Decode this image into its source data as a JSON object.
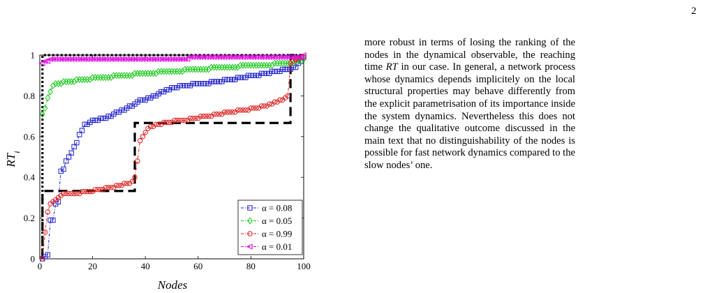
{
  "page": {
    "number": "2"
  },
  "text": {
    "paragraph_parts": [
      "more robust in terms of losing the ranking of the nodes in the dynamical observable, the reaching time ",
      "RT",
      " in our case. In general, a network process whose dynamics depends implicitely on the local structural properties may behave differently from the explicit parametrisation of its importance inside the system dynamics. Nevertheless this does not change the qualitative outcome discussed in the main text that no distinguishability of the nodes is possible for fast network dynamics compared to the slow nodes’ one."
    ]
  },
  "chart_data": {
    "type": "line",
    "xlabel": "Nodes",
    "ylabel": "RT_i",
    "xlim": [
      0,
      100
    ],
    "ylim": [
      0,
      1
    ],
    "xticks": [
      "0",
      "20",
      "40",
      "60",
      "80",
      "100"
    ],
    "yticks": [
      "0",
      "0.2",
      "0.4",
      "0.6",
      "0.8",
      "1"
    ],
    "legend_position": "bottom-right",
    "grid": false,
    "series": [
      {
        "name": "α = 0.08",
        "color": "#1f1fd0",
        "marker": "square",
        "values": [
          0.0,
          0.01,
          0.02,
          0.19,
          0.19,
          0.27,
          0.28,
          0.43,
          0.44,
          0.48,
          0.5,
          0.52,
          0.55,
          0.57,
          0.61,
          0.63,
          0.66,
          0.66,
          0.67,
          0.68,
          0.68,
          0.68,
          0.69,
          0.69,
          0.69,
          0.7,
          0.7,
          0.71,
          0.72,
          0.72,
          0.73,
          0.73,
          0.74,
          0.75,
          0.75,
          0.76,
          0.77,
          0.78,
          0.78,
          0.78,
          0.79,
          0.79,
          0.8,
          0.8,
          0.81,
          0.82,
          0.82,
          0.83,
          0.83,
          0.84,
          0.84,
          0.84,
          0.85,
          0.85,
          0.85,
          0.85,
          0.85,
          0.86,
          0.86,
          0.86,
          0.86,
          0.86,
          0.86,
          0.86,
          0.87,
          0.87,
          0.87,
          0.87,
          0.87,
          0.88,
          0.88,
          0.88,
          0.88,
          0.88,
          0.89,
          0.89,
          0.89,
          0.89,
          0.9,
          0.9,
          0.9,
          0.9,
          0.9,
          0.91,
          0.91,
          0.91,
          0.91,
          0.92,
          0.92,
          0.92,
          0.92,
          0.93,
          0.93,
          0.93,
          0.93,
          0.94,
          0.94,
          0.96,
          0.97,
          0.99
        ]
      },
      {
        "name": "α = 0.05",
        "color": "#16c816",
        "marker": "diamond",
        "values": [
          0.71,
          0.74,
          0.79,
          0.82,
          0.85,
          0.86,
          0.86,
          0.86,
          0.87,
          0.87,
          0.87,
          0.87,
          0.87,
          0.88,
          0.88,
          0.88,
          0.88,
          0.88,
          0.88,
          0.89,
          0.89,
          0.89,
          0.89,
          0.89,
          0.89,
          0.89,
          0.89,
          0.9,
          0.9,
          0.9,
          0.9,
          0.9,
          0.9,
          0.9,
          0.9,
          0.91,
          0.91,
          0.91,
          0.91,
          0.91,
          0.91,
          0.91,
          0.91,
          0.91,
          0.92,
          0.92,
          0.92,
          0.92,
          0.92,
          0.92,
          0.92,
          0.92,
          0.92,
          0.92,
          0.93,
          0.93,
          0.93,
          0.93,
          0.93,
          0.93,
          0.93,
          0.93,
          0.93,
          0.93,
          0.94,
          0.94,
          0.94,
          0.94,
          0.94,
          0.94,
          0.94,
          0.94,
          0.94,
          0.94,
          0.94,
          0.95,
          0.95,
          0.95,
          0.95,
          0.95,
          0.95,
          0.95,
          0.95,
          0.95,
          0.95,
          0.95,
          0.95,
          0.95,
          0.96,
          0.96,
          0.96,
          0.96,
          0.96,
          0.96,
          0.96,
          0.96,
          0.97,
          0.97,
          0.97,
          0.98
        ]
      },
      {
        "name": "α = 0.99",
        "color": "#dd1c1c",
        "marker": "circle",
        "values": [
          0.0,
          0.13,
          0.23,
          0.27,
          0.28,
          0.29,
          0.3,
          0.31,
          0.32,
          0.32,
          0.32,
          0.32,
          0.32,
          0.32,
          0.32,
          0.33,
          0.33,
          0.33,
          0.33,
          0.33,
          0.34,
          0.34,
          0.34,
          0.34,
          0.35,
          0.35,
          0.35,
          0.35,
          0.36,
          0.36,
          0.36,
          0.37,
          0.37,
          0.37,
          0.38,
          0.4,
          0.48,
          0.58,
          0.6,
          0.62,
          0.64,
          0.65,
          0.65,
          0.66,
          0.66,
          0.66,
          0.67,
          0.67,
          0.67,
          0.67,
          0.68,
          0.68,
          0.68,
          0.68,
          0.68,
          0.68,
          0.69,
          0.69,
          0.69,
          0.69,
          0.7,
          0.7,
          0.7,
          0.7,
          0.7,
          0.71,
          0.71,
          0.71,
          0.71,
          0.72,
          0.72,
          0.72,
          0.72,
          0.72,
          0.73,
          0.73,
          0.73,
          0.73,
          0.73,
          0.74,
          0.74,
          0.74,
          0.74,
          0.75,
          0.75,
          0.75,
          0.76,
          0.76,
          0.77,
          0.77,
          0.78,
          0.78,
          0.79,
          0.8,
          0.96,
          0.97,
          0.98,
          0.98,
          0.99,
          0.99
        ]
      },
      {
        "name": "α = 0.01",
        "color": "#e000e0",
        "marker": "triangle-left",
        "values": [
          0.96,
          0.97,
          0.97,
          0.98,
          0.98,
          0.98,
          0.98,
          0.98,
          0.98,
          0.98,
          0.98,
          0.98,
          0.98,
          0.98,
          0.98,
          0.98,
          0.98,
          0.98,
          0.98,
          0.98,
          0.98,
          0.98,
          0.98,
          0.98,
          0.98,
          0.98,
          0.98,
          0.98,
          0.98,
          0.98,
          0.98,
          0.98,
          0.98,
          0.98,
          0.98,
          0.98,
          0.98,
          0.98,
          0.98,
          0.98,
          0.98,
          0.98,
          0.98,
          0.98,
          0.98,
          0.98,
          0.98,
          0.98,
          0.98,
          0.98,
          0.98,
          0.98,
          0.98,
          0.98,
          0.98,
          0.98,
          0.99,
          0.99,
          0.99,
          0.99,
          0.99,
          0.99,
          0.99,
          0.99,
          0.99,
          0.99,
          0.99,
          0.99,
          0.99,
          0.99,
          0.99,
          0.99,
          0.99,
          0.99,
          0.99,
          0.99,
          0.99,
          0.99,
          0.99,
          0.99,
          0.99,
          0.99,
          0.99,
          0.99,
          0.99,
          0.99,
          0.99,
          0.99,
          0.99,
          0.99,
          0.99,
          0.99,
          0.99,
          0.99,
          0.99,
          0.99,
          0.99,
          0.99,
          0.99,
          1.0
        ]
      }
    ],
    "reference_lines": [
      {
        "color": "#000000",
        "style": "dashed",
        "points": [
          [
            1,
            0.0
          ],
          [
            1,
            0.333
          ],
          [
            36,
            0.333
          ],
          [
            36,
            0.667
          ],
          [
            95,
            0.667
          ],
          [
            95,
            1.0
          ],
          [
            100,
            1.0
          ]
        ]
      },
      {
        "color": "#000000",
        "style": "dotted",
        "points": [
          [
            1,
            0.0
          ],
          [
            1,
            1.0
          ],
          [
            100,
            1.0
          ]
        ]
      }
    ]
  }
}
